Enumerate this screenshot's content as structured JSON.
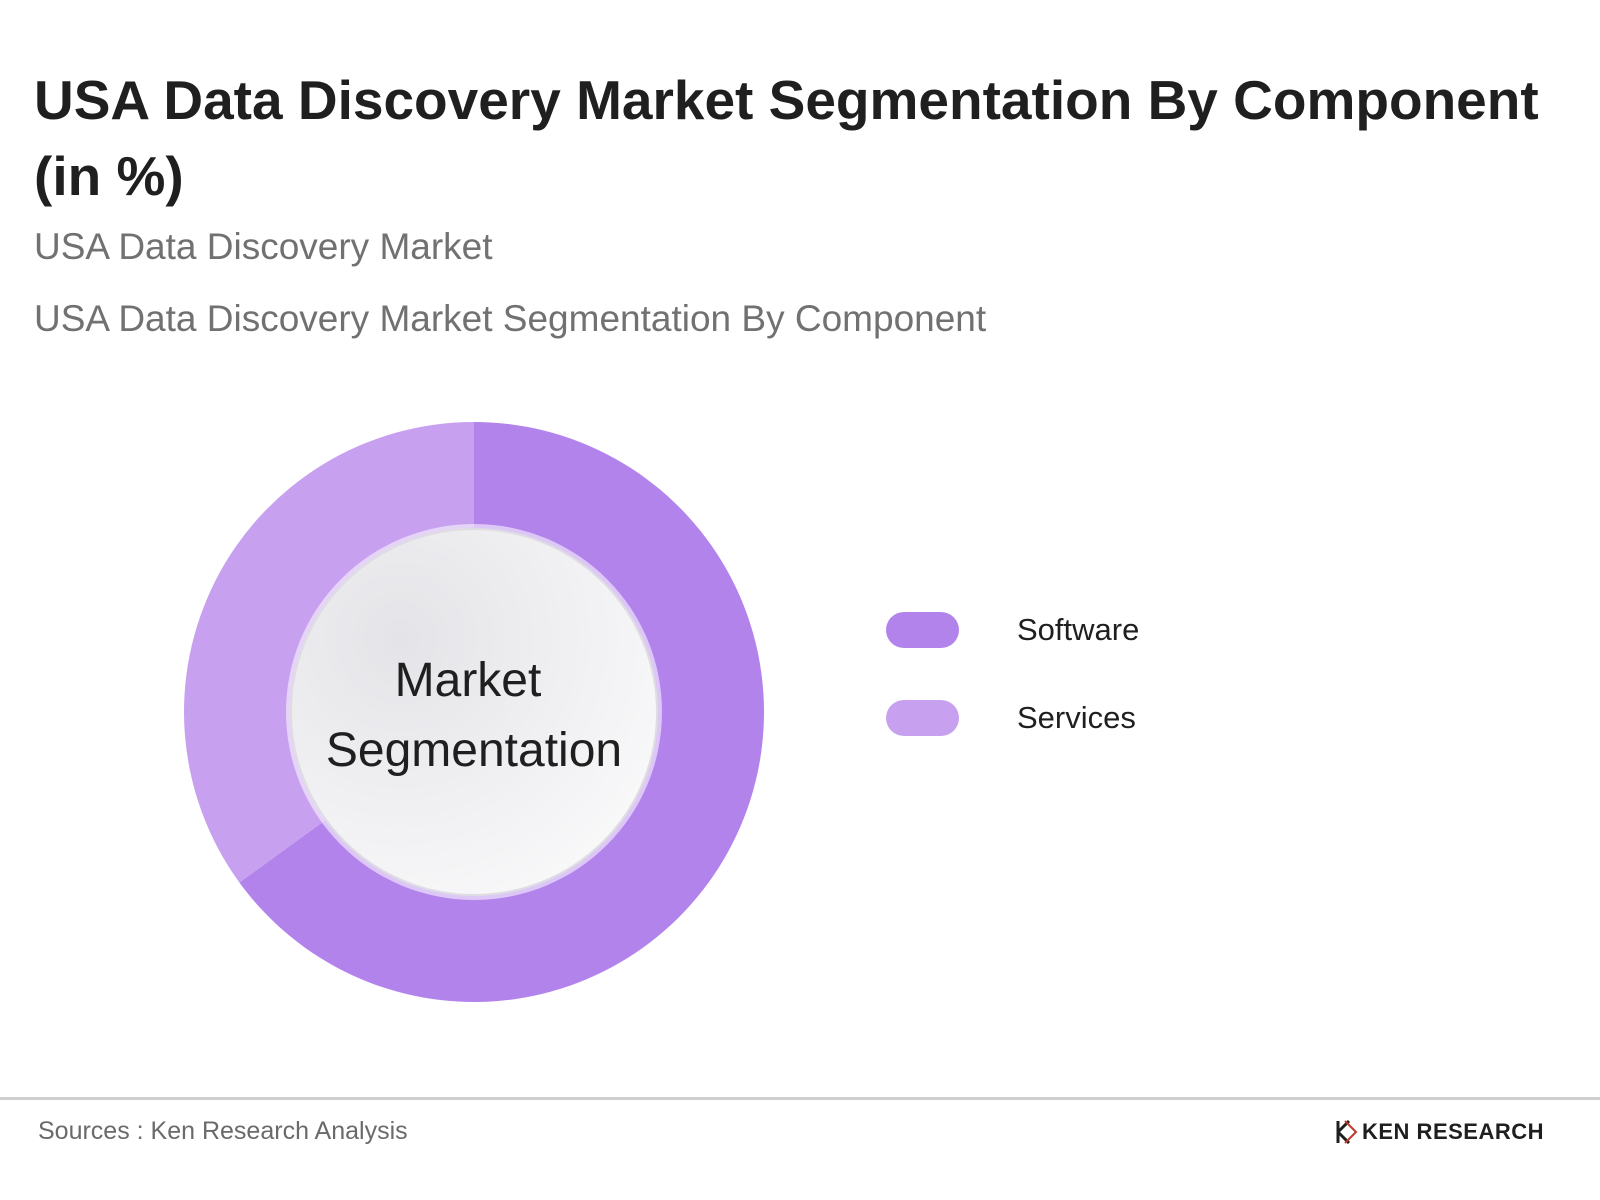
{
  "title": "USA Data Discovery Market Segmentation By Component (in %)",
  "subtitle_1": "USA Data Discovery Market",
  "subtitle_2": "USA Data Discovery Market Segmentation By Component",
  "center_label_line1": "Market",
  "center_label_line2": "Segmentation",
  "source": "Sources : Ken Research Analysis",
  "logo_text": "KEN RESEARCH",
  "chart_data": {
    "type": "pie",
    "donut": true,
    "categories": [
      "Software",
      "Services"
    ],
    "values": [
      65,
      35
    ],
    "colors": [
      "#b383ec",
      "#c8a0f0"
    ],
    "legend_position": "right"
  }
}
